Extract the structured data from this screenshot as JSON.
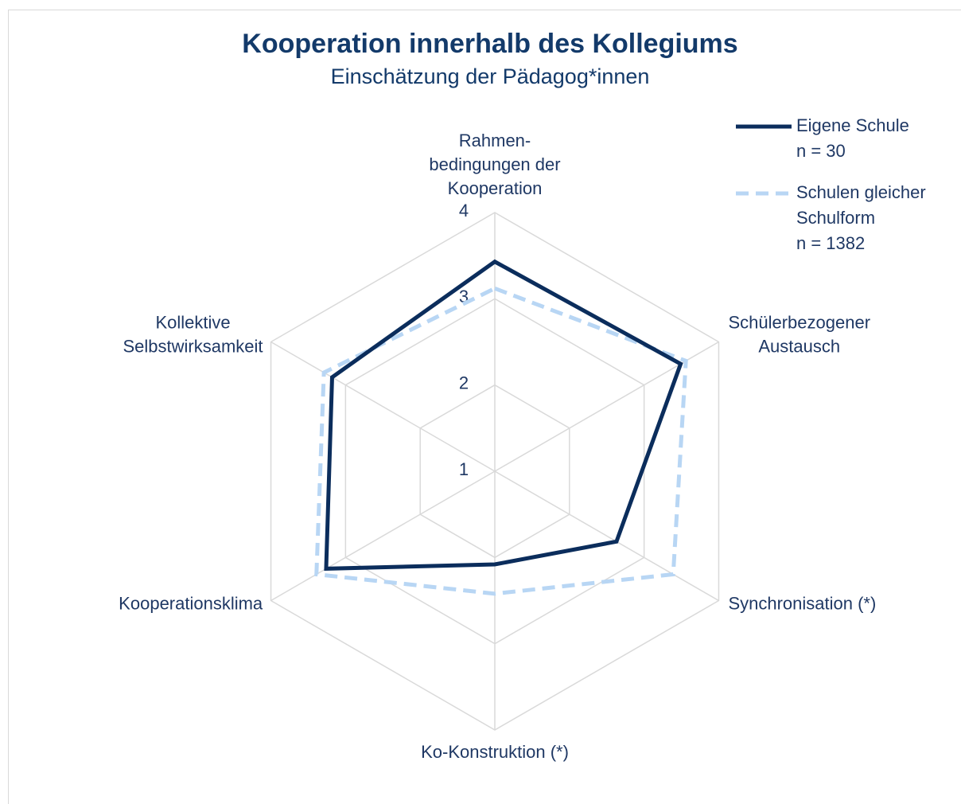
{
  "chart_data": {
    "type": "radar",
    "title": "Kooperation innerhalb des Kollegiums",
    "subtitle": "Einschätzung der Pädagog*innen",
    "categories": [
      [
        "Rahmen-",
        "bedingungen der",
        "Kooperation"
      ],
      [
        "Schülerbezogener",
        "Austausch"
      ],
      [
        "Synchronisation (*)"
      ],
      [
        "Ko-Konstruktion (*)"
      ],
      [
        "Kooperationsklima"
      ],
      [
        "Kollektive",
        "Selbstwirksamkeit"
      ]
    ],
    "series": [
      {
        "name": [
          "Eigene Schule",
          "n = 30"
        ],
        "color": "#0b2d5c",
        "dashed": false,
        "values": [
          3.43,
          3.49,
          2.63,
          2.08,
          3.26,
          3.18
        ]
      },
      {
        "name": [
          "Schulen gleicher",
          "Schulform",
          "n = 1382"
        ],
        "color": "#b8d6f4",
        "dashed": true,
        "values": [
          3.12,
          3.56,
          3.39,
          2.42,
          3.39,
          3.29
        ]
      }
    ],
    "ylim": [
      1,
      4
    ],
    "yticks": [
      1,
      2,
      3,
      4
    ],
    "grid": true,
    "legend": "top-right"
  }
}
